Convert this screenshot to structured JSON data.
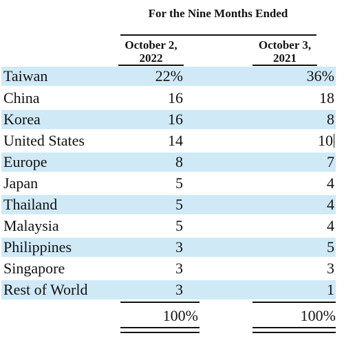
{
  "header": {
    "period": "For the Nine Months Ended",
    "col1_line1": "October 2,",
    "col1_line2": "2022",
    "col2_line1": "October 3,",
    "col2_line2": "2021"
  },
  "rows": [
    {
      "label": "Taiwan",
      "v2022": "22%",
      "v2021": "36%"
    },
    {
      "label": "China",
      "v2022": "16",
      "v2021": "18"
    },
    {
      "label": "Korea",
      "v2022": "16",
      "v2021": "8"
    },
    {
      "label": "United States",
      "v2022": "14",
      "v2021": "10"
    },
    {
      "label": "Europe",
      "v2022": "8",
      "v2021": "7"
    },
    {
      "label": "Japan",
      "v2022": "5",
      "v2021": "4"
    },
    {
      "label": "Thailand",
      "v2022": "5",
      "v2021": "4"
    },
    {
      "label": "Malaysia",
      "v2022": "5",
      "v2021": "4"
    },
    {
      "label": "Philippines",
      "v2022": "3",
      "v2021": "5"
    },
    {
      "label": "Singapore",
      "v2022": "3",
      "v2021": "3"
    },
    {
      "label": "Rest of World",
      "v2022": "3",
      "v2021": "1"
    }
  ],
  "totals": {
    "v2022": "100%",
    "v2021": "100%"
  },
  "colors": {
    "row_shade": "#cfe9f7"
  }
}
